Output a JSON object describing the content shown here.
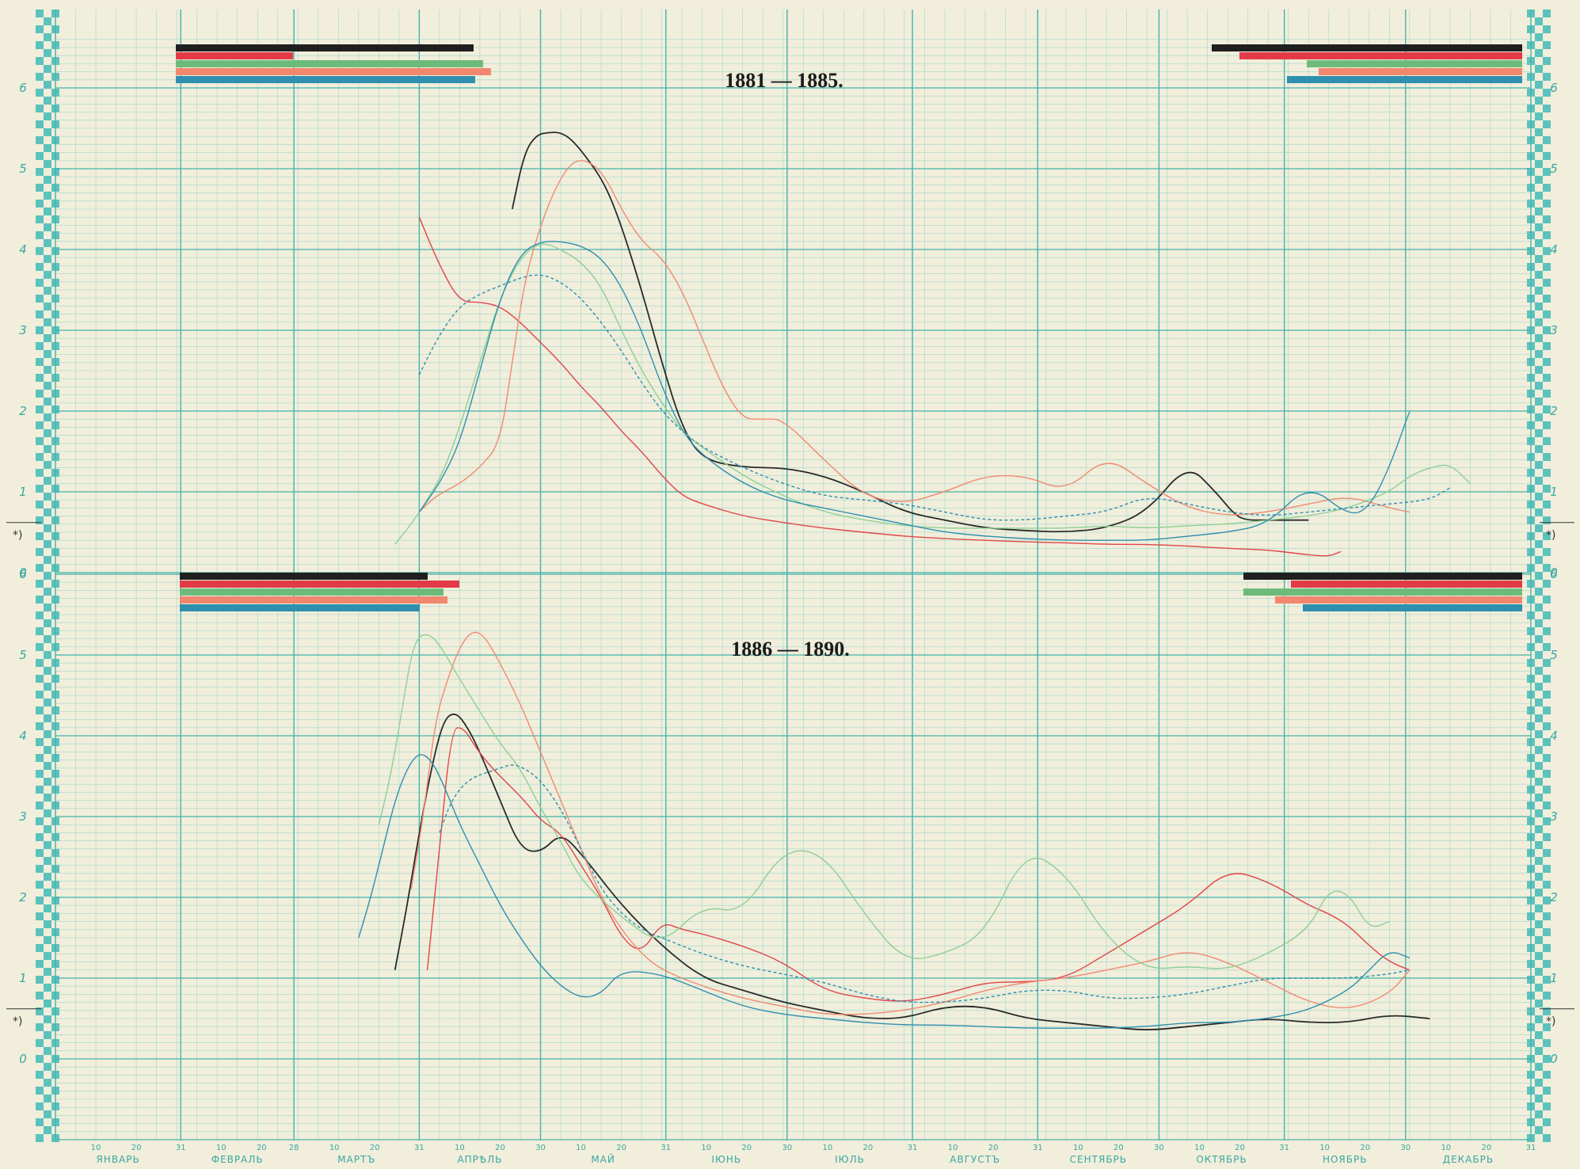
{
  "chart_data": [
    {
      "type": "line",
      "title": "1881 — 1885.",
      "xlabel": "",
      "ylabel": "",
      "months": [
        "ЯНВАРЬ",
        "ФЕВРАЛЬ",
        "МАРТЪ",
        "АПРѢЛЬ",
        "МАЙ",
        "ІЮНЬ",
        "ІЮЛЬ",
        "АВГУСТЪ",
        "СЕНТЯБРЬ",
        "ОКТЯБРЬ",
        "НОЯБРЬ",
        "ДЕКАБРЬ"
      ],
      "ylim": [
        0,
        6
      ],
      "yticks": [
        0,
        1,
        2,
        3,
        4,
        5,
        6
      ],
      "grid": true,
      "marker_label": "*)",
      "marker_value": 0.62,
      "series": [
        {
          "color": "#2a2a2a",
          "x": [
            113,
            116,
            119,
            122,
            125,
            128,
            132,
            136,
            140,
            145,
            150,
            155,
            160,
            170,
            180,
            190,
            200,
            210,
            220,
            230,
            240,
            250,
            260,
            270,
            280,
            287,
            292,
            295,
            298,
            302,
            306,
            310
          ],
          "y": [
            4.5,
            5.2,
            5.42,
            5.45,
            5.45,
            5.35,
            5.1,
            4.8,
            4.3,
            3.5,
            2.6,
            1.8,
            1.4,
            1.3,
            1.3,
            1.2,
            1.0,
            0.75,
            0.65,
            0.55,
            0.52,
            0.5,
            0.55,
            0.75,
            1.35,
            1.0,
            0.7,
            0.65,
            0.65,
            0.65,
            0.65,
            0.65
          ]
        },
        {
          "color": "#e0464a",
          "x": [
            90,
            95,
            100,
            105,
            110,
            115,
            120,
            125,
            130,
            135,
            140,
            145,
            150,
            155,
            160,
            170,
            180,
            190,
            200,
            210,
            220,
            230,
            240,
            250,
            260,
            270,
            280,
            290,
            300,
            305,
            310,
            315,
            318
          ],
          "y": [
            4.4,
            3.8,
            3.35,
            3.35,
            3.3,
            3.1,
            2.85,
            2.6,
            2.3,
            2.05,
            1.75,
            1.5,
            1.2,
            0.95,
            0.85,
            0.7,
            0.62,
            0.55,
            0.5,
            0.45,
            0.42,
            0.4,
            0.38,
            0.37,
            0.35,
            0.35,
            0.33,
            0.3,
            0.28,
            0.25,
            0.22,
            0.2,
            0.26
          ]
        },
        {
          "color": "#f08a72",
          "x": [
            90,
            93,
            96,
            100,
            105,
            110,
            113,
            116,
            120,
            124,
            128,
            132,
            136,
            140,
            145,
            150,
            155,
            160,
            165,
            170,
            175,
            180,
            190,
            200,
            210,
            220,
            230,
            240,
            250,
            260,
            270,
            280,
            290,
            300,
            310,
            320,
            330,
            335
          ],
          "y": [
            0.75,
            0.9,
            1.0,
            1.1,
            1.3,
            1.6,
            2.6,
            3.6,
            4.3,
            4.8,
            5.1,
            5.1,
            4.9,
            4.5,
            4.1,
            3.9,
            3.5,
            2.9,
            2.3,
            1.9,
            1.9,
            1.9,
            1.4,
            0.95,
            0.85,
            1.0,
            1.2,
            1.2,
            1.0,
            1.45,
            1.1,
            0.8,
            0.7,
            0.75,
            0.85,
            0.95,
            0.8,
            0.75
          ]
        },
        {
          "color": "#8fcf95",
          "x": [
            84,
            88,
            92,
            96,
            100,
            105,
            110,
            115,
            120,
            125,
            130,
            135,
            140,
            145,
            150,
            155,
            160,
            170,
            180,
            190,
            200,
            210,
            220,
            230,
            240,
            250,
            260,
            270,
            280,
            290,
            300,
            310,
            320,
            330,
            335,
            340,
            345,
            350
          ],
          "y": [
            0.35,
            0.6,
            0.9,
            1.25,
            1.8,
            2.6,
            3.4,
            3.9,
            4.1,
            4.0,
            3.85,
            3.55,
            3.0,
            2.5,
            2.1,
            1.75,
            1.55,
            1.2,
            0.95,
            0.75,
            0.65,
            0.58,
            0.55,
            0.55,
            0.55,
            0.55,
            0.58,
            0.55,
            0.58,
            0.6,
            0.65,
            0.7,
            0.8,
            1.0,
            1.2,
            1.3,
            1.35,
            1.1
          ]
        },
        {
          "color": "#2f8fae",
          "x": [
            90,
            95,
            100,
            105,
            110,
            115,
            120,
            125,
            130,
            135,
            140,
            145,
            150,
            155,
            160,
            170,
            180,
            190,
            200,
            210,
            220,
            230,
            240,
            250,
            260,
            270,
            280,
            290,
            300,
            310,
            320,
            325,
            330,
            335
          ],
          "y": [
            0.75,
            1.1,
            1.6,
            2.5,
            3.4,
            3.95,
            4.1,
            4.1,
            4.05,
            3.9,
            3.55,
            3.0,
            2.3,
            1.75,
            1.45,
            1.1,
            0.9,
            0.8,
            0.7,
            0.6,
            0.5,
            0.45,
            0.42,
            0.4,
            0.4,
            0.4,
            0.45,
            0.5,
            0.6,
            1.1,
            0.7,
            0.8,
            1.3,
            2.0
          ]
        },
        {
          "color": "#2f8fae",
          "dashed": true,
          "x": [
            90,
            95,
            100,
            105,
            110,
            115,
            120,
            125,
            130,
            135,
            140,
            145,
            150,
            155,
            160,
            170,
            180,
            190,
            200,
            210,
            220,
            230,
            240,
            250,
            260,
            270,
            280,
            290,
            300,
            310,
            320,
            330,
            340,
            345
          ],
          "y": [
            2.45,
            2.95,
            3.3,
            3.45,
            3.55,
            3.65,
            3.7,
            3.6,
            3.4,
            3.1,
            2.75,
            2.35,
            2.0,
            1.75,
            1.55,
            1.3,
            1.1,
            0.95,
            0.9,
            0.85,
            0.75,
            0.65,
            0.65,
            0.7,
            0.75,
            0.95,
            0.85,
            0.75,
            0.7,
            0.75,
            0.8,
            0.85,
            0.9,
            1.05
          ]
        }
      ]
    },
    {
      "type": "line",
      "title": "1886 — 1890.",
      "xlabel": "",
      "ylabel": "",
      "months": [
        "ЯНВАРЬ",
        "ФЕВРАЛЬ",
        "МАРТЪ",
        "АПРѢЛЬ",
        "МАЙ",
        "ІЮНЬ",
        "ІЮЛЬ",
        "АВГУСТЪ",
        "СЕНТЯБРЬ",
        "ОКТЯБРЬ",
        "НОЯБРЬ",
        "ДЕКАБРЬ"
      ],
      "ylim": [
        0,
        6
      ],
      "yticks": [
        0,
        1,
        2,
        3,
        4,
        5,
        6
      ],
      "grid": true,
      "marker_label": "*)",
      "marker_value": 0.62,
      "series": [
        {
          "color": "#2a2a2a",
          "x": [
            84,
            87,
            90,
            93,
            96,
            99,
            102,
            105,
            110,
            115,
            120,
            125,
            130,
            140,
            150,
            160,
            170,
            180,
            190,
            200,
            210,
            220,
            230,
            240,
            250,
            260,
            270,
            280,
            290,
            300,
            310,
            320,
            330,
            340
          ],
          "y": [
            1.1,
            1.9,
            2.8,
            3.6,
            4.2,
            4.3,
            4.1,
            3.8,
            3.2,
            2.6,
            2.55,
            2.8,
            2.55,
            1.9,
            1.4,
            1.0,
            0.85,
            0.7,
            0.6,
            0.5,
            0.5,
            0.65,
            0.65,
            0.5,
            0.45,
            0.4,
            0.35,
            0.4,
            0.45,
            0.5,
            0.45,
            0.45,
            0.55,
            0.5
          ]
        },
        {
          "color": "#e0464a",
          "x": [
            92,
            95,
            98,
            101,
            104,
            108,
            112,
            116,
            120,
            125,
            130,
            135,
            140,
            145,
            150,
            155,
            160,
            170,
            180,
            190,
            200,
            210,
            220,
            230,
            240,
            250,
            260,
            270,
            280,
            290,
            300,
            310,
            315,
            320,
            325,
            330,
            335
          ],
          "y": [
            1.1,
            2.6,
            4.1,
            4.1,
            3.85,
            3.6,
            3.4,
            3.2,
            2.95,
            2.8,
            2.4,
            2.0,
            1.5,
            1.3,
            1.7,
            1.6,
            1.55,
            1.4,
            1.2,
            0.85,
            0.75,
            0.7,
            0.8,
            0.95,
            0.95,
            1.0,
            1.3,
            1.6,
            1.9,
            2.35,
            2.2,
            1.9,
            1.8,
            1.65,
            1.4,
            1.2,
            1.1
          ]
        },
        {
          "color": "#f08a72",
          "x": [
            88,
            91,
            94,
            97,
            100,
            103,
            106,
            110,
            115,
            120,
            125,
            130,
            135,
            140,
            145,
            150,
            160,
            170,
            180,
            190,
            200,
            210,
            220,
            230,
            240,
            250,
            260,
            270,
            280,
            290,
            300,
            310,
            320,
            330,
            335
          ],
          "y": [
            2.1,
            3.0,
            4.2,
            4.7,
            5.1,
            5.3,
            5.25,
            4.9,
            4.4,
            3.8,
            3.2,
            2.6,
            2.0,
            1.6,
            1.3,
            1.1,
            0.9,
            0.75,
            0.65,
            0.55,
            0.55,
            0.6,
            0.7,
            0.85,
            0.95,
            1.0,
            1.1,
            1.2,
            1.35,
            1.2,
            0.95,
            0.7,
            0.6,
            0.8,
            1.1
          ]
        },
        {
          "color": "#8fcf95",
          "x": [
            80,
            82,
            84,
            86,
            88,
            90,
            93,
            96,
            100,
            105,
            110,
            115,
            120,
            125,
            130,
            140,
            150,
            160,
            170,
            180,
            190,
            200,
            210,
            220,
            230,
            240,
            250,
            260,
            270,
            280,
            290,
            300,
            310,
            315,
            320,
            325,
            330
          ],
          "y": [
            2.9,
            3.3,
            3.8,
            4.4,
            5.0,
            5.25,
            5.25,
            5.05,
            4.7,
            4.3,
            3.9,
            3.6,
            3.1,
            2.7,
            2.2,
            1.75,
            1.4,
            1.9,
            1.8,
            2.6,
            2.55,
            1.8,
            1.2,
            1.3,
            1.55,
            2.6,
            2.3,
            1.5,
            1.1,
            1.15,
            1.1,
            1.3,
            1.6,
            2.1,
            2.05,
            1.6,
            1.7
          ]
        },
        {
          "color": "#2f8fae",
          "x": [
            75,
            78,
            81,
            84,
            87,
            90,
            93,
            96,
            100,
            105,
            110,
            115,
            120,
            125,
            130,
            135,
            140,
            150,
            160,
            170,
            180,
            190,
            200,
            210,
            220,
            230,
            240,
            250,
            260,
            270,
            280,
            290,
            300,
            310,
            320,
            325,
            330,
            335
          ],
          "y": [
            1.5,
            2.0,
            2.6,
            3.2,
            3.6,
            3.8,
            3.7,
            3.4,
            2.9,
            2.4,
            1.9,
            1.5,
            1.15,
            0.9,
            0.75,
            0.8,
            1.1,
            1.05,
            0.85,
            0.65,
            0.55,
            0.5,
            0.45,
            0.42,
            0.42,
            0.4,
            0.38,
            0.38,
            0.38,
            0.4,
            0.45,
            0.45,
            0.5,
            0.6,
            0.85,
            1.1,
            1.35,
            1.25
          ]
        },
        {
          "color": "#2f8fae",
          "dashed": true,
          "x": [
            95,
            98,
            101,
            104,
            107,
            110,
            113,
            116,
            120,
            125,
            130,
            135,
            140,
            145,
            150,
            160,
            170,
            180,
            190,
            200,
            210,
            220,
            230,
            240,
            250,
            260,
            270,
            280,
            290,
            300,
            310,
            320,
            330,
            335
          ],
          "y": [
            2.8,
            3.2,
            3.4,
            3.5,
            3.55,
            3.6,
            3.65,
            3.6,
            3.45,
            3.1,
            2.6,
            2.1,
            1.8,
            1.6,
            1.5,
            1.3,
            1.15,
            1.05,
            0.95,
            0.8,
            0.7,
            0.7,
            0.75,
            0.85,
            0.85,
            0.75,
            0.75,
            0.8,
            0.9,
            1.0,
            1.0,
            1.0,
            1.05,
            1.1
          ]
        }
      ]
    }
  ]
}
